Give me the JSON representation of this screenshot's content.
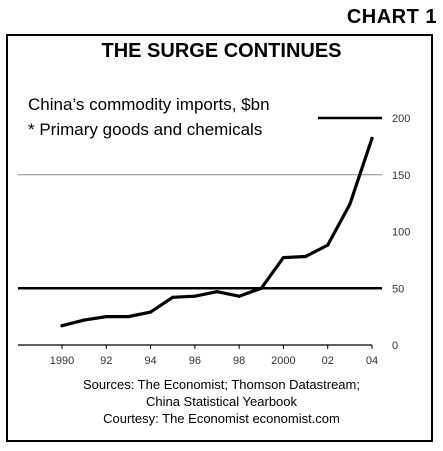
{
  "header": {
    "chart_label": "CHART 1",
    "title": "THE SURGE CONTINUES",
    "subtitle_line1": "China’s commodity imports, $bn",
    "subtitle_line2": "* Primary goods and chemicals"
  },
  "footer": {
    "line1": "Sources: The Economist; Thomson Datastream;",
    "line2": "China Statistical Yearbook",
    "line3": "Courtesy: The Economist economist.com"
  },
  "chart_data": {
    "type": "line",
    "title": "THE SURGE CONTINUES",
    "subtitle": "China’s commodity imports, $bn",
    "note": "* Primary goods and chemicals",
    "xlabel": "",
    "ylabel": "",
    "x_tick_labels": [
      "1990",
      "92",
      "94",
      "96",
      "98",
      "2000",
      "02",
      "04"
    ],
    "y_tick_labels": [
      "0",
      "50",
      "100",
      "150",
      "200"
    ],
    "ylim": [
      0,
      200
    ],
    "x": [
      1990,
      1991,
      1992,
      1993,
      1994,
      1995,
      1996,
      1997,
      1998,
      1999,
      2000,
      2001,
      2002,
      2003,
      2004
    ],
    "series": [
      {
        "values": [
          17,
          22,
          25,
          25,
          29,
          42,
          43,
          47,
          43,
          50,
          77,
          78,
          88,
          124,
          182
        ]
      }
    ],
    "grid": "horizontal",
    "line_color": "#000000",
    "grid_color": "#888888"
  }
}
